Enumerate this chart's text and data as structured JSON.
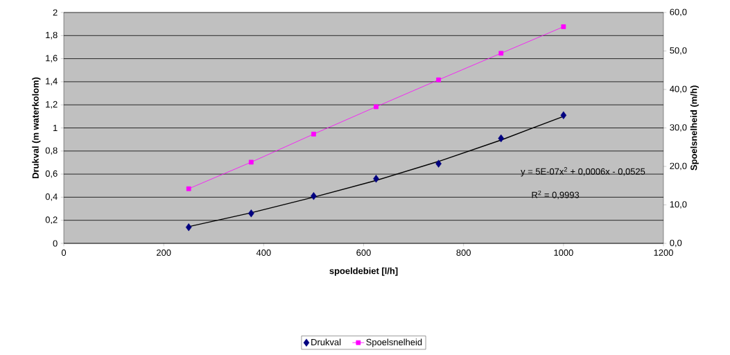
{
  "chart_data": {
    "type": "scatter",
    "xlabel": "spoeldebiet [l/h]",
    "ylabel": "Drukval (m waterkolom)",
    "y2label": "Spoelsnelheid (m/h)",
    "xlim": [
      0,
      1200
    ],
    "xticks": [
      0,
      200,
      400,
      600,
      800,
      1000,
      1200
    ],
    "ylim": [
      0,
      2
    ],
    "yticks": [
      0,
      {
        "value": 0.2,
        "label": "0,2"
      },
      {
        "value": 0.4,
        "label": "0,4"
      },
      {
        "value": 0.6,
        "label": "0,6"
      },
      {
        "value": 0.8,
        "label": "0,8"
      },
      1,
      {
        "value": 1.2,
        "label": "1,2"
      },
      {
        "value": 1.4,
        "label": "1,4"
      },
      {
        "value": 1.6,
        "label": "1,6"
      },
      {
        "value": 1.8,
        "label": "1,8"
      },
      2
    ],
    "y2lim": [
      0,
      60
    ],
    "y2ticks": [
      {
        "value": 0,
        "label": "0,0"
      },
      {
        "value": 10,
        "label": "10,0"
      },
      {
        "value": 20,
        "label": "20,0"
      },
      {
        "value": 30,
        "label": "30,0"
      },
      {
        "value": 40,
        "label": "40,0"
      },
      {
        "value": 50,
        "label": "50,0"
      },
      {
        "value": 60,
        "label": "60,0"
      }
    ],
    "grid": "y",
    "legend": "bottom",
    "x": [
      250,
      375,
      500,
      625,
      750,
      875,
      1000
    ],
    "series": [
      {
        "name": "Drukval",
        "color": "#000080",
        "marker": "diamond",
        "values": [
          0.14,
          0.26,
          0.41,
          0.56,
          0.69,
          0.91,
          1.11
        ]
      },
      {
        "name": "Spoelsnelheid",
        "type": "line",
        "color": "#ff00ff",
        "marker": "square",
        "axis": "y2",
        "values": [
          14.2,
          21.1,
          28.4,
          35.5,
          42.5,
          49.4,
          56.3
        ]
      },
      {
        "type": "line",
        "color": "#000000",
        "marker": "none",
        "x": [
          250,
          375,
          500,
          625,
          750,
          875,
          1000
        ],
        "values": [
          0.145,
          0.265,
          0.4,
          0.545,
          0.71,
          0.895,
          1.1
        ]
      }
    ],
    "annotations": [
      "y = 5E-07x$^{2}$ + 0,0006x - 0,0525",
      "R$^{2}$ = 0,9993"
    ]
  }
}
